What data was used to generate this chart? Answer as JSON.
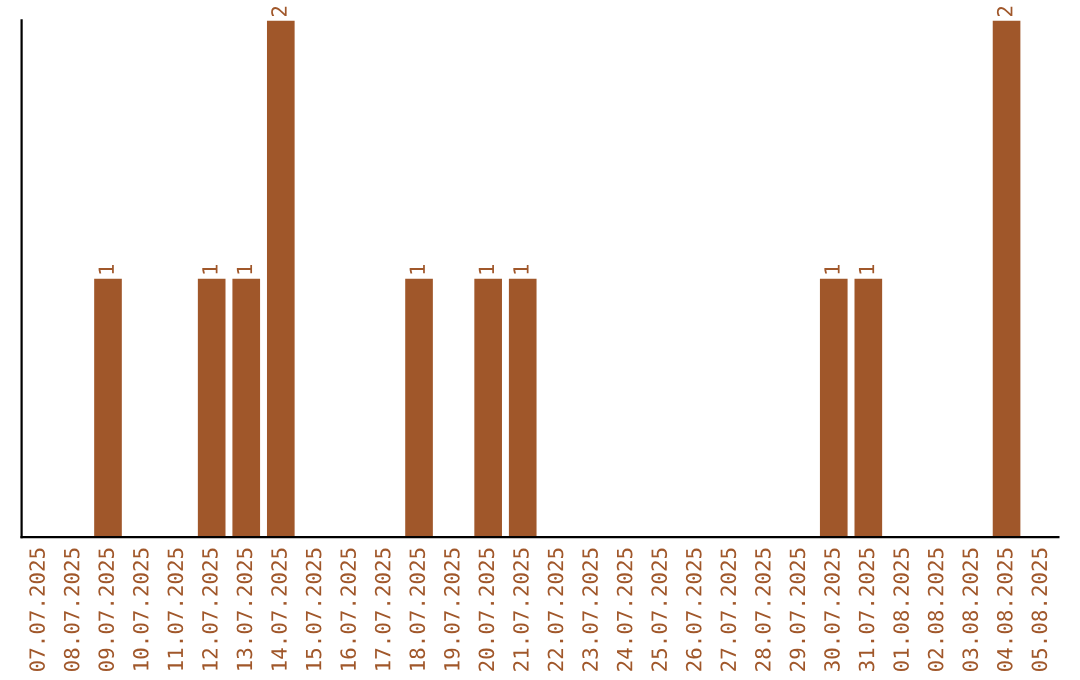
{
  "chart_data": {
    "type": "bar",
    "categories": [
      "07.07.2025",
      "08.07.2025",
      "09.07.2025",
      "10.07.2025",
      "11.07.2025",
      "12.07.2025",
      "13.07.2025",
      "14.07.2025",
      "15.07.2025",
      "16.07.2025",
      "17.07.2025",
      "18.07.2025",
      "19.07.2025",
      "20.07.2025",
      "21.07.2025",
      "22.07.2025",
      "23.07.2025",
      "24.07.2025",
      "25.07.2025",
      "26.07.2025",
      "27.07.2025",
      "28.07.2025",
      "29.07.2025",
      "30.07.2025",
      "31.07.2025",
      "01.08.2025",
      "02.08.2025",
      "03.08.2025",
      "04.08.2025",
      "05.08.2025"
    ],
    "values": [
      0,
      0,
      1,
      0,
      0,
      1,
      1,
      2,
      0,
      0,
      0,
      1,
      0,
      1,
      1,
      0,
      0,
      0,
      0,
      0,
      0,
      0,
      0,
      1,
      1,
      0,
      0,
      0,
      2,
      0
    ],
    "value_labels": [
      null,
      null,
      "1",
      null,
      null,
      "1",
      "1",
      "2",
      null,
      null,
      null,
      "1",
      null,
      "1",
      "1",
      null,
      null,
      null,
      null,
      null,
      null,
      null,
      null,
      "1",
      "1",
      null,
      null,
      null,
      "2",
      null
    ],
    "color": "#a0572a",
    "tick_labels": "x",
    "grid": false,
    "legend": false
  }
}
